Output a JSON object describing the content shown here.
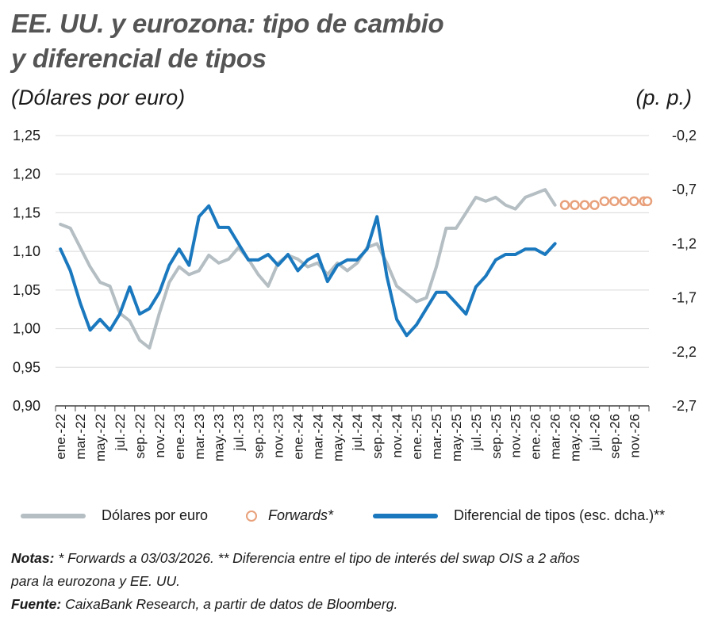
{
  "title_line1": "EE. UU. y eurozona: tipo de cambio",
  "title_line2": "y diferencial de tipos",
  "left_unit": "(Dólares por euro)",
  "right_unit": "(p. p.)",
  "legend": {
    "usd_label": "Dólares por euro",
    "forwards_label": "Forwards*",
    "diff_label": "Diferencial de tipos (esc. dcha.)**"
  },
  "notes": {
    "label": "Notas:",
    "text_a": " * Forwards a 03/03/2026. ** Diferencia entre el tipo de interés del swap OIS a 2 años",
    "text_b": "para la eurozona y EE. UU.",
    "source_label": "Fuente:",
    "source_text": " CaixaBank Research, a partir de datos de Bloomberg."
  },
  "colors": {
    "usd_line": "#B4BEC3",
    "diff_line": "#1A78BE",
    "forwards": "#E8A07A",
    "grid": "#D9D9D9",
    "axis": "#404040",
    "title": "#555555"
  },
  "chart_data": {
    "type": "line",
    "x_tick_labels": [
      "ene.-22",
      "mar.-22",
      "may.-22",
      "jul.-22",
      "sep.-22",
      "nov.-22",
      "ene.-23",
      "mar.-23",
      "may.-23",
      "jul.-23",
      "sep.-23",
      "nov.-23",
      "ene.-24",
      "mar.-24",
      "may.-24",
      "jul.-24",
      "sep.-24",
      "nov.-24",
      "ene.-25",
      "mar.-25",
      "may.-25",
      "jul.-25",
      "sep.-25",
      "nov.-25",
      "ene.-26",
      "mar.-26",
      "may.-26",
      "jul.-26",
      "sep.-26",
      "nov.-26"
    ],
    "x_range": [
      "2022-01",
      "2026-12"
    ],
    "left_axis": {
      "label": "(Dólares por euro)",
      "range": [
        0.9,
        1.25
      ],
      "ticks": [
        "1,25",
        "1,20",
        "1,15",
        "1,10",
        "1,05",
        "1,00",
        "0,95",
        "0,90"
      ]
    },
    "right_axis": {
      "label": "(p. p.)",
      "range": [
        -2.7,
        -0.2
      ],
      "ticks": [
        "-0,2",
        "-0,7",
        "-1,2",
        "-1,7",
        "-2,2",
        "-2,7"
      ]
    },
    "grid": "horizontal",
    "legend_position": "bottom",
    "series": [
      {
        "name": "Dólares por euro",
        "axis": "left",
        "x": [
          "2022-01",
          "2022-02",
          "2022-03",
          "2022-04",
          "2022-05",
          "2022-06",
          "2022-07",
          "2022-08",
          "2022-09",
          "2022-10",
          "2022-11",
          "2022-12",
          "2023-01",
          "2023-02",
          "2023-03",
          "2023-04",
          "2023-05",
          "2023-06",
          "2023-07",
          "2023-08",
          "2023-09",
          "2023-10",
          "2023-11",
          "2023-12",
          "2024-01",
          "2024-02",
          "2024-03",
          "2024-04",
          "2024-05",
          "2024-06",
          "2024-07",
          "2024-08",
          "2024-09",
          "2024-10",
          "2024-11",
          "2024-12",
          "2025-01",
          "2025-02",
          "2025-03",
          "2025-04",
          "2025-05",
          "2025-06",
          "2025-07",
          "2025-08",
          "2025-09",
          "2025-10",
          "2025-11",
          "2025-12",
          "2026-01",
          "2026-02",
          "2026-03"
        ],
        "y": [
          1.135,
          1.13,
          1.105,
          1.08,
          1.06,
          1.055,
          1.02,
          1.01,
          0.985,
          0.975,
          1.02,
          1.06,
          1.08,
          1.07,
          1.075,
          1.095,
          1.085,
          1.09,
          1.105,
          1.09,
          1.07,
          1.055,
          1.085,
          1.095,
          1.09,
          1.08,
          1.085,
          1.07,
          1.085,
          1.075,
          1.085,
          1.105,
          1.11,
          1.085,
          1.055,
          1.045,
          1.035,
          1.04,
          1.08,
          1.13,
          1.13,
          1.15,
          1.17,
          1.165,
          1.17,
          1.16,
          1.155,
          1.17,
          1.175,
          1.18,
          1.16
        ]
      },
      {
        "name": "Diferencial de tipos (esc. dcha.)**",
        "axis": "right",
        "x": [
          "2022-01",
          "2022-02",
          "2022-03",
          "2022-04",
          "2022-05",
          "2022-06",
          "2022-07",
          "2022-08",
          "2022-09",
          "2022-10",
          "2022-11",
          "2022-12",
          "2023-01",
          "2023-02",
          "2023-03",
          "2023-04",
          "2023-05",
          "2023-06",
          "2023-07",
          "2023-08",
          "2023-09",
          "2023-10",
          "2023-11",
          "2023-12",
          "2024-01",
          "2024-02",
          "2024-03",
          "2024-04",
          "2024-05",
          "2024-06",
          "2024-07",
          "2024-08",
          "2024-09",
          "2024-10",
          "2024-11",
          "2024-12",
          "2025-01",
          "2025-02",
          "2025-03",
          "2025-04",
          "2025-05",
          "2025-06",
          "2025-07",
          "2025-08",
          "2025-09",
          "2025-10",
          "2025-11",
          "2025-12",
          "2026-01",
          "2026-02",
          "2026-03"
        ],
        "y": [
          -1.25,
          -1.45,
          -1.75,
          -2.0,
          -1.9,
          -2.0,
          -1.85,
          -1.6,
          -1.85,
          -1.8,
          -1.65,
          -1.4,
          -1.25,
          -1.4,
          -0.95,
          -0.85,
          -1.05,
          -1.05,
          -1.2,
          -1.35,
          -1.35,
          -1.3,
          -1.4,
          -1.3,
          -1.45,
          -1.35,
          -1.3,
          -1.55,
          -1.4,
          -1.35,
          -1.35,
          -1.25,
          -0.95,
          -1.5,
          -1.9,
          -2.05,
          -1.95,
          -1.8,
          -1.65,
          -1.65,
          -1.75,
          -1.85,
          -1.6,
          -1.5,
          -1.35,
          -1.3,
          -1.3,
          -1.25,
          -1.25,
          -1.3,
          -1.2
        ]
      },
      {
        "name": "Forwards*",
        "axis": "left",
        "x": [
          "2026-04",
          "2026-05",
          "2026-06",
          "2026-07",
          "2026-08",
          "2026-09",
          "2026-10",
          "2026-11",
          "2026-12",
          "2027-01"
        ],
        "y": [
          1.16,
          1.16,
          1.16,
          1.16,
          1.165,
          1.165,
          1.165,
          1.165,
          1.165,
          1.165
        ]
      }
    ]
  }
}
